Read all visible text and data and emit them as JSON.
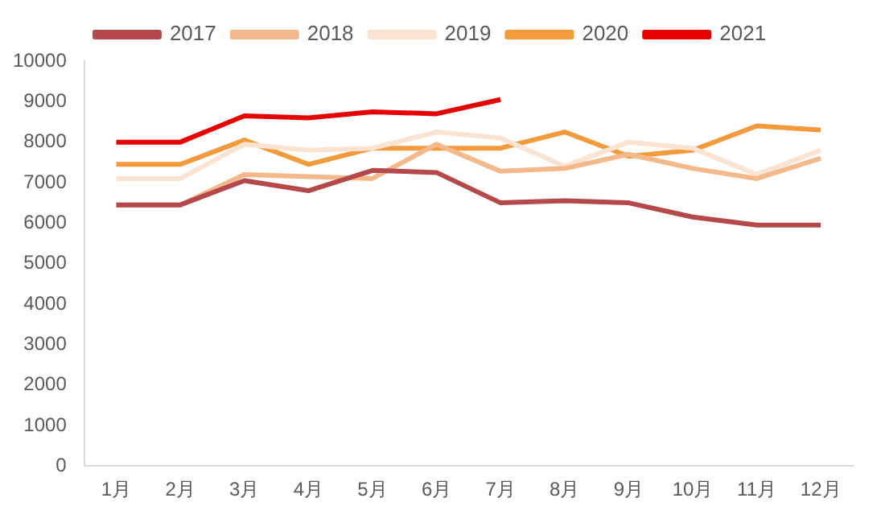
{
  "chart_data": {
    "type": "line",
    "categories": [
      "1月",
      "2月",
      "3月",
      "4月",
      "5月",
      "6月",
      "7月",
      "8月",
      "9月",
      "10月",
      "11月",
      "12月"
    ],
    "series": [
      {
        "name": "2017",
        "color": "#b5494a",
        "values": [
          6450,
          6450,
          7050,
          6800,
          7300,
          7250,
          6500,
          6550,
          6500,
          6150,
          5950,
          5950
        ]
      },
      {
        "name": "2018",
        "color": "#f4b98a",
        "values": [
          6450,
          6450,
          7200,
          7150,
          7100,
          7950,
          7280,
          7350,
          7700,
          7350,
          7100,
          7600
        ]
      },
      {
        "name": "2019",
        "color": "#fbe3d2",
        "values": [
          7100,
          7100,
          7950,
          7800,
          7850,
          8250,
          8100,
          7400,
          8000,
          7850,
          7200,
          7800
        ]
      },
      {
        "name": "2020",
        "color": "#f39a3c",
        "values": [
          7450,
          7450,
          8050,
          7450,
          7850,
          7850,
          7850,
          8250,
          7650,
          7800,
          8400,
          8300
        ]
      },
      {
        "name": "2021",
        "color": "#e60000",
        "values": [
          8000,
          8000,
          8650,
          8600,
          8750,
          8700,
          9050,
          null,
          null,
          null,
          null,
          null
        ]
      }
    ],
    "ylim": [
      0,
      10000
    ],
    "yticks": [
      0,
      1000,
      2000,
      3000,
      4000,
      5000,
      6000,
      7000,
      8000,
      9000,
      10000
    ],
    "grid": false,
    "legend": "top",
    "marker": "none",
    "line_style": "solid"
  }
}
